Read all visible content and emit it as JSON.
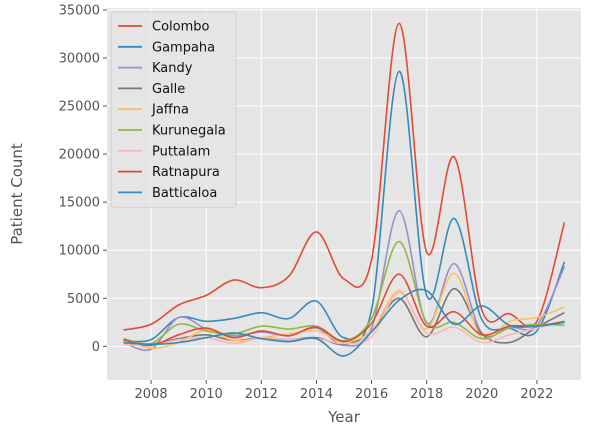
{
  "chart_data": {
    "type": "line",
    "title": "",
    "xlabel": "Year",
    "ylabel": "Patient Count",
    "xlim": [
      2006.4,
      2023.6
    ],
    "ylim": [
      -3500,
      35200
    ],
    "grid": true,
    "legend_position": "top-left",
    "x_ticks": [
      2008,
      2010,
      2012,
      2014,
      2016,
      2018,
      2020,
      2022
    ],
    "y_ticks": [
      0,
      5000,
      10000,
      15000,
      20000,
      25000,
      30000,
      35000
    ],
    "x": [
      2007,
      2008,
      2009,
      2010,
      2011,
      2012,
      2013,
      2014,
      2015,
      2016,
      2017,
      2018,
      2019,
      2020,
      2021,
      2022,
      2023
    ],
    "series": [
      {
        "name": "Colombo",
        "color": "#E24A33",
        "values": [
          1700,
          2300,
          4300,
          5300,
          6900,
          6100,
          7300,
          11900,
          7000,
          9000,
          33600,
          9800,
          19700,
          3800,
          3400,
          2600,
          12900
        ]
      },
      {
        "name": "Gampaha",
        "color": "#348ABD",
        "values": [
          600,
          700,
          3000,
          2600,
          2900,
          3500,
          2900,
          4700,
          900,
          3800,
          28600,
          5300,
          13300,
          2800,
          1900,
          1600,
          8800
        ]
      },
      {
        "name": "Kandy",
        "color": "#988ED5",
        "values": [
          400,
          -300,
          3000,
          1800,
          1100,
          1500,
          1100,
          1900,
          100,
          1900,
          14100,
          2400,
          8600,
          1400,
          2000,
          2200,
          8300
        ]
      },
      {
        "name": "Galle",
        "color": "#777777",
        "values": [
          200,
          200,
          800,
          1200,
          600,
          900,
          700,
          900,
          200,
          1600,
          5000,
          1000,
          6000,
          1300,
          400,
          2000,
          3500
        ]
      },
      {
        "name": "Jaffna",
        "color": "#FBC15E",
        "values": [
          700,
          -200,
          400,
          1700,
          600,
          900,
          1300,
          1600,
          500,
          1600,
          5800,
          1800,
          7600,
          900,
          2600,
          3000,
          4100
        ]
      },
      {
        "name": "Kurunegala",
        "color": "#8EBA42",
        "values": [
          800,
          300,
          2300,
          1600,
          1300,
          2100,
          1800,
          2100,
          600,
          2900,
          10900,
          2500,
          2500,
          800,
          1900,
          2300,
          2200
        ]
      },
      {
        "name": "Puttalam",
        "color": "#FFB5B8",
        "values": [
          200,
          100,
          700,
          900,
          300,
          900,
          700,
          800,
          300,
          1000,
          5600,
          1400,
          2000,
          400,
          1200,
          1900,
          2600
        ]
      },
      {
        "name": "Ratnapura",
        "color": "#E24A33",
        "values": [
          700,
          100,
          1200,
          1900,
          900,
          1600,
          1100,
          2000,
          500,
          2400,
          7500,
          2100,
          3600,
          1200,
          2100,
          2100,
          2600
        ]
      },
      {
        "name": "Batticaloa",
        "color": "#348ABD",
        "values": [
          400,
          200,
          400,
          900,
          1400,
          800,
          500,
          800,
          -1000,
          1500,
          4800,
          5800,
          2300,
          4200,
          2200,
          2100,
          2500
        ]
      }
    ]
  }
}
